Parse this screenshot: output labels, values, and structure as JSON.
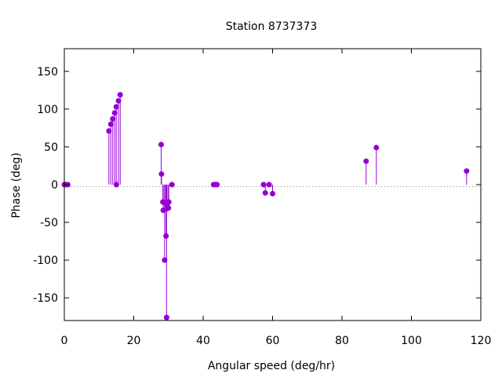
{
  "chart_data": {
    "type": "scatter",
    "style": "impulses-with-points",
    "title": "Station 8737373",
    "xlabel": "Angular speed (deg/hr)",
    "ylabel": "Phase (deg)",
    "xlim": [
      0,
      120
    ],
    "ylim": [
      -180,
      180
    ],
    "xticks": [
      0,
      20,
      40,
      60,
      80,
      100,
      120
    ],
    "yticks": [
      -150,
      -100,
      -50,
      0,
      50,
      100,
      150
    ],
    "grid": false,
    "zero_line": "dotted",
    "legend": "none",
    "color": "#9400d3",
    "series": [
      {
        "x": [
          0.0,
          0.5,
          1.0,
          12.85,
          13.4,
          13.95,
          14.5,
          14.96,
          15.0,
          15.6,
          16.1,
          27.9,
          28.0,
          28.4,
          28.5,
          28.9,
          29.0,
          29.3,
          29.46,
          29.5,
          29.6,
          30.0,
          30.1,
          31.0,
          43.0,
          43.5,
          44.0,
          57.4,
          57.9,
          59.0,
          60.0,
          86.95,
          89.9,
          115.9
        ],
        "y": [
          0,
          0,
          0,
          71,
          80,
          87,
          95,
          103,
          0,
          111,
          119,
          53,
          14,
          -23,
          -34,
          -100,
          -24,
          -68,
          -176,
          -32,
          -27,
          -31,
          -23,
          0,
          0,
          0,
          0,
          0,
          -11,
          0,
          -12,
          31,
          49,
          18
        ]
      }
    ]
  }
}
